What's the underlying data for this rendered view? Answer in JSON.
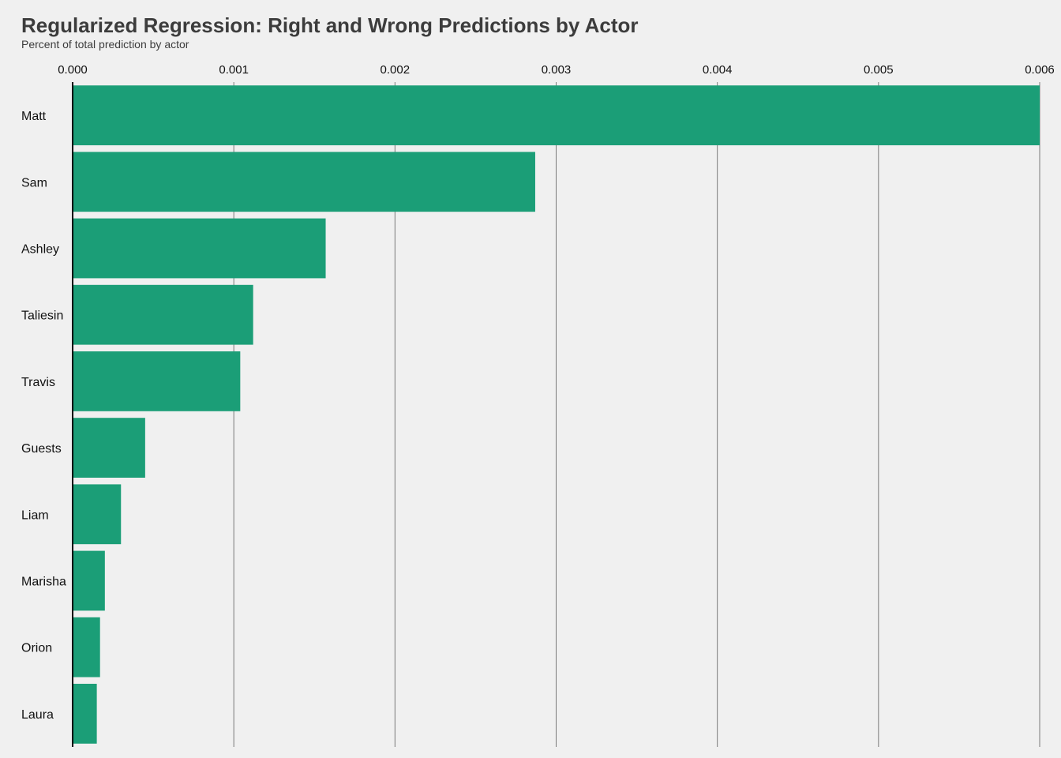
{
  "chart_data": {
    "type": "bar",
    "orientation": "horizontal",
    "title": "Regularized Regression: Right and Wrong Predictions by Actor",
    "subtitle": "Percent of total prediction by actor",
    "xlim": [
      0,
      0.006
    ],
    "x_ticks": [
      "0.000",
      "0.001",
      "0.002",
      "0.003",
      "0.004",
      "0.005",
      "0.006"
    ],
    "x_axis_position": "top",
    "grid": "vertical",
    "categories": [
      "Matt",
      "Sam",
      "Ashley",
      "Taliesin",
      "Travis",
      "Guests",
      "Liam",
      "Marisha",
      "Orion",
      "Laura"
    ],
    "values": [
      0.006,
      0.00287,
      0.00157,
      0.00112,
      0.00104,
      0.00045,
      0.0003,
      0.0002,
      0.00017,
      0.00015
    ],
    "bar_color": "#1b9e77"
  }
}
